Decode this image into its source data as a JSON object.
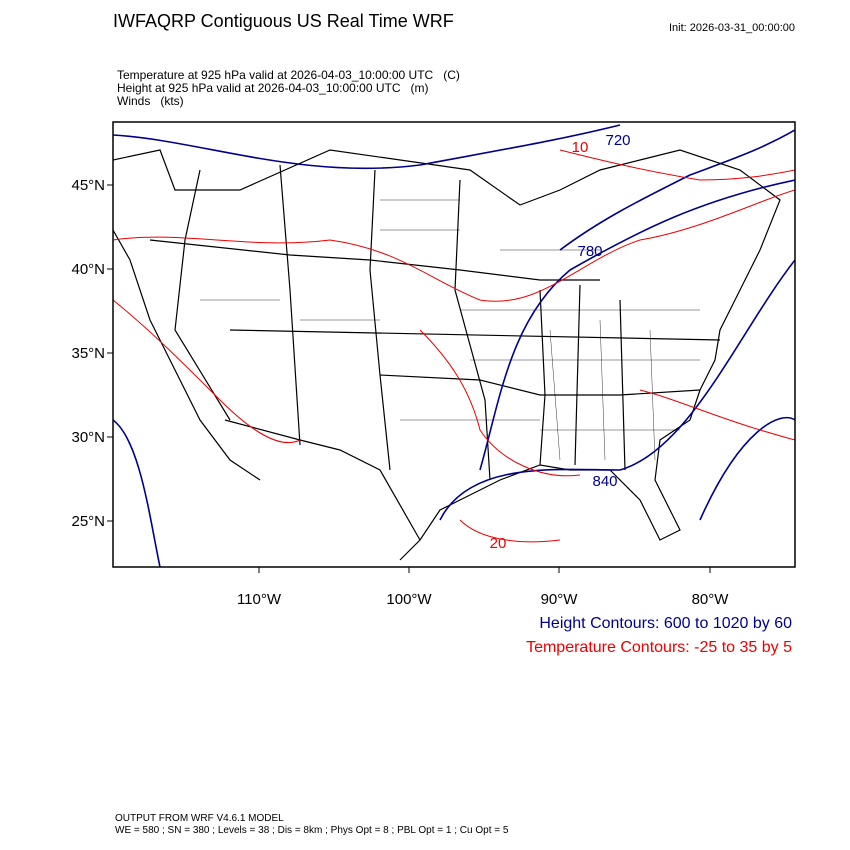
{
  "header": {
    "title": "IWFAQRP Contiguous US Real Time WRF",
    "init": "Init: 2026-03-31_00:00:00"
  },
  "fields": [
    "Temperature at 925 hPa valid at 2026-04-03_10:00:00 UTC   (C)",
    "Height at 925 hPa valid at 2026-04-03_10:00:00 UTC   (m)",
    "Winds   (kts)"
  ],
  "map": {
    "lat_labels": [
      "45°N",
      "40°N",
      "35°N",
      "30°N",
      "25°N"
    ],
    "lon_labels": [
      "110°W",
      "100°W",
      "90°W",
      "80°W"
    ],
    "contour_labels": [
      "720",
      "10",
      "780",
      "840",
      "20"
    ]
  },
  "legend": {
    "height": "Height Contours: 600 to 1020 by 60",
    "temperature": "Temperature Contours: -25 to 35 by 5"
  },
  "footer": [
    "OUTPUT FROM WRF V4.6.1 MODEL",
    "WE = 580 ; SN = 380 ; Levels = 38 ; Dis = 8km ; Phys Opt = 8 ; PBL Opt = 1 ; Cu Opt = 5"
  ]
}
